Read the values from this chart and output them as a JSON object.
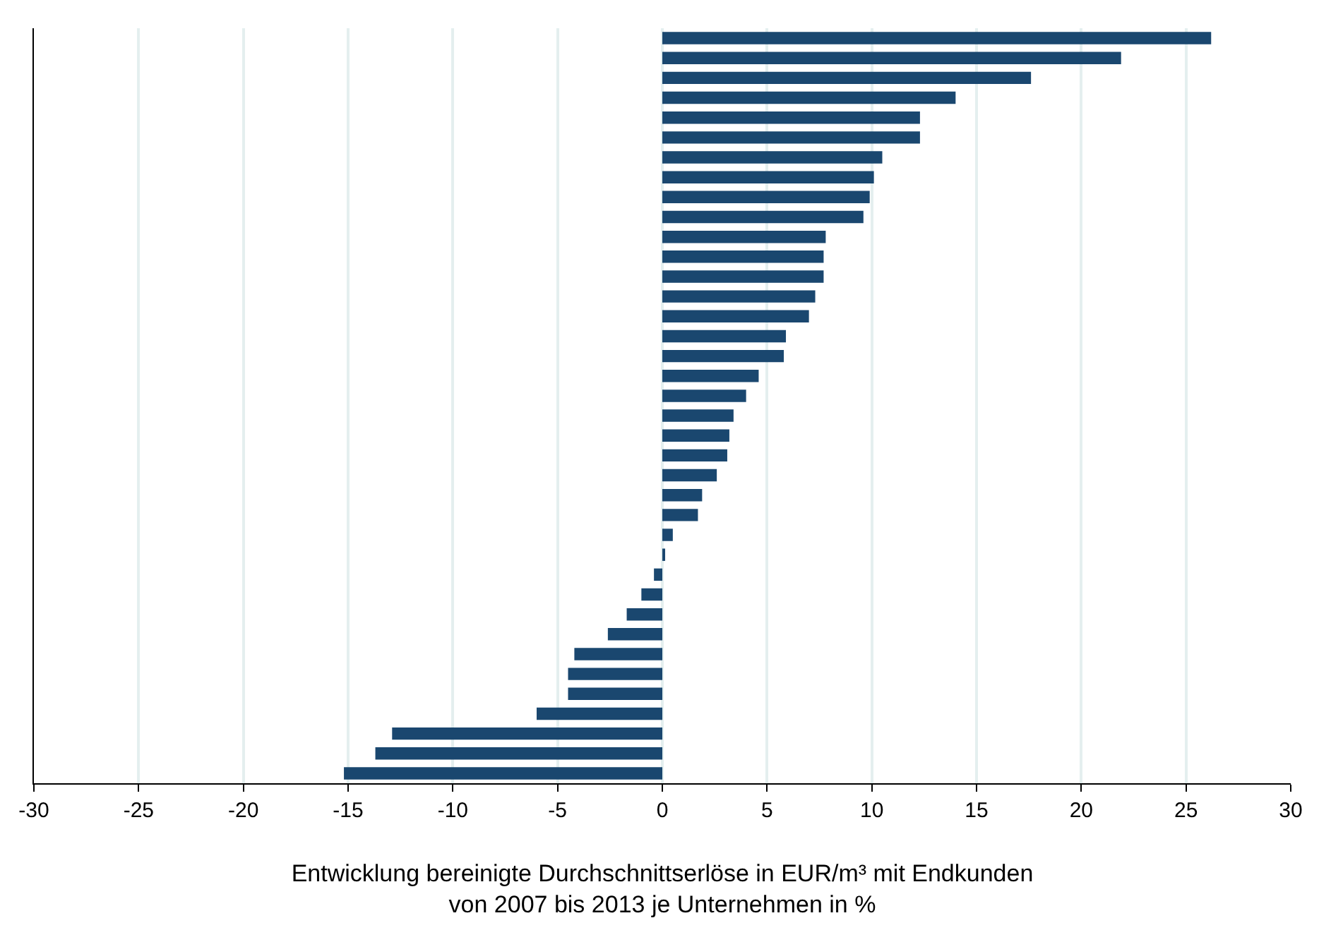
{
  "chart_data": {
    "type": "bar",
    "orientation": "horizontal",
    "xlabel": "Entwicklung bereinigte Durchschnittserlöse in EUR/m³ mit Endkunden\nvon 2007 bis 2013 je Unternehmen in %",
    "categories": [
      null,
      null,
      null,
      null,
      null,
      null,
      null,
      null,
      null,
      null,
      null,
      null,
      null,
      null,
      null,
      null,
      null,
      null,
      null,
      null,
      null,
      null,
      null,
      null,
      null,
      null,
      null,
      null,
      null,
      null,
      null,
      null,
      null,
      null,
      null,
      null,
      null,
      null
    ],
    "values": [
      26.2,
      21.9,
      17.6,
      14.0,
      12.3,
      12.3,
      10.5,
      10.1,
      9.9,
      9.6,
      7.8,
      7.7,
      7.7,
      7.3,
      7.0,
      5.9,
      5.8,
      4.6,
      4.0,
      3.4,
      3.2,
      3.1,
      2.6,
      1.9,
      1.7,
      0.5,
      0.1,
      -0.4,
      -1.0,
      -1.7,
      -2.6,
      -4.2,
      -4.5,
      -4.5,
      -6.0,
      -12.9,
      -13.7,
      -15.2
    ],
    "color": "#1a476f",
    "xlim": [
      -30,
      30
    ],
    "xticks": [
      -30,
      -25,
      -20,
      -15,
      -10,
      -5,
      0,
      5,
      10,
      15,
      20,
      25,
      30
    ],
    "grid": "x",
    "tick_labels": "x"
  }
}
